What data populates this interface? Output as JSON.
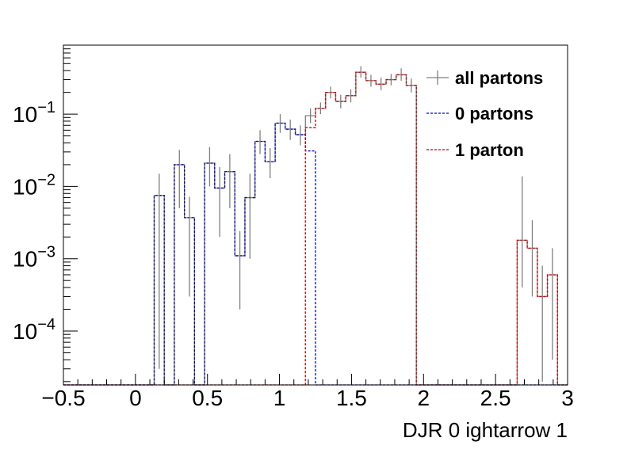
{
  "chart_data": {
    "type": "histogram",
    "xlabel": "DJR 0 ightarrow 1",
    "ylabel": "",
    "xlim": [
      -0.5,
      3.0
    ],
    "ylim": [
      1.8e-05,
      0.9
    ],
    "yscale": "log",
    "grid": false,
    "legend_position": "top-right",
    "x_ticks": [
      {
        "value": -0.5,
        "label": "−0.5"
      },
      {
        "value": 0,
        "label": "0"
      },
      {
        "value": 0.5,
        "label": "0.5"
      },
      {
        "value": 1,
        "label": "1"
      },
      {
        "value": 1.5,
        "label": "1.5"
      },
      {
        "value": 2,
        "label": "2"
      },
      {
        "value": 2.5,
        "label": "2.5"
      },
      {
        "value": 3,
        "label": "3"
      }
    ],
    "y_ticks": [
      {
        "value": 0.0001,
        "base": "10",
        "exp": "−4"
      },
      {
        "value": 0.001,
        "base": "10",
        "exp": "−3"
      },
      {
        "value": 0.01,
        "base": "10",
        "exp": "−2"
      },
      {
        "value": 0.1,
        "base": "10",
        "exp": "−1"
      }
    ],
    "bin_edges_start": -0.5,
    "bin_width": 0.07,
    "series": [
      {
        "name": "all partons",
        "color": "#808080",
        "dash": "solid",
        "values": [
          0,
          0,
          0,
          0,
          0,
          0,
          0,
          0,
          0,
          0.0075,
          0,
          0.02,
          0.0037,
          0,
          0.021,
          0.0095,
          0.016,
          0.0011,
          0.007,
          0.042,
          0.022,
          0.075,
          0.062,
          0.052,
          0.095,
          0.12,
          0.2,
          0.15,
          0.18,
          0.38,
          0.29,
          0.26,
          0.3,
          0.35,
          0.25,
          0,
          0,
          0,
          0,
          0,
          0,
          0,
          0,
          0,
          0,
          0.0018,
          0.0014,
          0.0003,
          0.0006,
          0
        ],
        "errors_low": [
          0,
          0,
          0,
          0,
          0,
          0,
          0,
          0,
          0,
          0.00747,
          0,
          0.015,
          0.0034,
          0,
          0.011,
          0.0075,
          0.011,
          0.0009,
          0.006,
          0.014,
          0.009,
          0.02,
          0.018,
          0.015,
          0.02,
          0.02,
          0.035,
          0.03,
          0.035,
          0.06,
          0.05,
          0.045,
          0.05,
          0.06,
          0.05,
          0,
          0,
          0,
          0,
          0,
          0,
          0,
          0,
          0,
          0,
          0.0014,
          0.0011,
          0.00028,
          0.00056,
          0
        ],
        "errors_high": [
          0,
          0,
          0,
          0,
          0,
          0,
          0,
          0,
          0,
          0.0075,
          0,
          0.012,
          0.0035,
          0,
          0.014,
          0.009,
          0.012,
          0.0013,
          0.008,
          0.018,
          0.012,
          0.025,
          0.022,
          0.018,
          0.025,
          0.025,
          0.04,
          0.035,
          0.04,
          0.08,
          0.06,
          0.06,
          0.06,
          0.08,
          0.06,
          0,
          0,
          0,
          0,
          0,
          0,
          0,
          0,
          0,
          0,
          0.012,
          0.002,
          0.0005,
          0.0008,
          0
        ]
      },
      {
        "name": "0 partons",
        "color": "#0000cc",
        "dash": "dashed",
        "values": [
          0,
          0,
          0,
          0,
          0,
          0,
          0,
          0,
          0,
          0.0075,
          0,
          0.02,
          0.0037,
          0,
          0.021,
          0.0095,
          0.016,
          0.0011,
          0.007,
          0.042,
          0.022,
          0.075,
          0.062,
          0.052,
          0.031,
          0,
          0,
          0,
          0,
          0,
          0,
          0,
          0,
          0,
          0,
          0,
          0,
          0,
          0,
          0,
          0,
          0,
          0,
          0,
          0,
          0,
          0,
          0,
          0,
          0
        ]
      },
      {
        "name": "1 parton",
        "color": "#cc0000",
        "dash": "dashed",
        "values": [
          0,
          0,
          0,
          0,
          0,
          0,
          0,
          0,
          0,
          0,
          0,
          0,
          0,
          0,
          0,
          0,
          0,
          0,
          0,
          0,
          0,
          0,
          0,
          0,
          0.065,
          0.12,
          0.2,
          0.15,
          0.18,
          0.38,
          0.29,
          0.26,
          0.3,
          0.35,
          0.25,
          0,
          0,
          0,
          0,
          0,
          0,
          0,
          0,
          0,
          0,
          0.0018,
          0.0014,
          0.0003,
          0.0006,
          0
        ]
      }
    ]
  }
}
